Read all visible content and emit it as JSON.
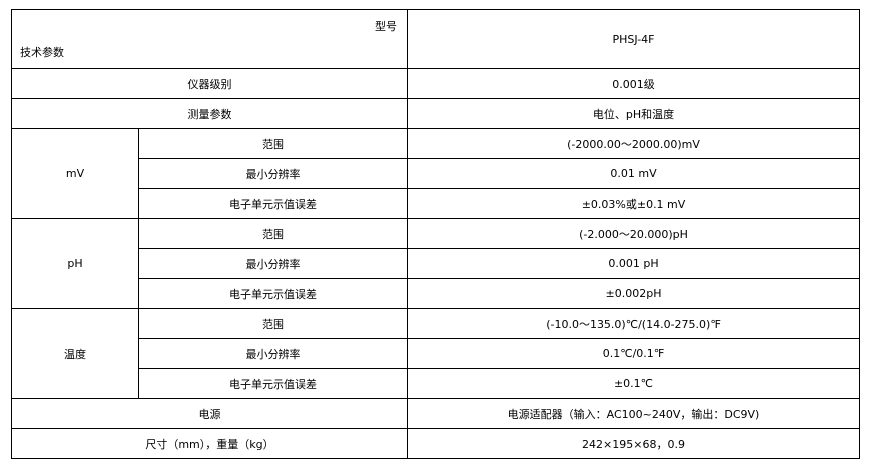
{
  "header": {
    "model_label": "型号",
    "param_label": "技术参数",
    "model_value": "PHSJ-4F"
  },
  "rows": {
    "grade": {
      "label": "仪器级别",
      "value": "0.001级"
    },
    "measure": {
      "label": "测量参数",
      "value": "电位、pH和温度"
    },
    "mv": {
      "group": "mV",
      "range": {
        "label": "范围",
        "value": "(-2000.00～2000.00)mV"
      },
      "resolution": {
        "label": "最小分辨率",
        "value": "0.01 mV"
      },
      "error": {
        "label": "电子单元示值误差",
        "value": "±0.03%或±0.1 mV"
      }
    },
    "ph": {
      "group": "pH",
      "range": {
        "label": "范围",
        "value": "(-2.000～20.000)pH"
      },
      "resolution": {
        "label": "最小分辨率",
        "value": "0.001 pH"
      },
      "error": {
        "label": "电子单元示值误差",
        "value": "±0.002pH"
      }
    },
    "temp": {
      "group": "温度",
      "range": {
        "label": "范围",
        "value": "(-10.0～135.0)℃/(14.0-275.0)℉"
      },
      "resolution": {
        "label": "最小分辨率",
        "value": "0.1℃/0.1℉"
      },
      "error": {
        "label": "电子单元示值误差",
        "value": "±0.1℃"
      }
    },
    "power": {
      "label": "电源",
      "value": "电源适配器（输入：AC100~240V，输出：DC9V)"
    },
    "size": {
      "label": "尺寸（mm），重量（kg）",
      "value": "242×195×68，0.9"
    }
  }
}
